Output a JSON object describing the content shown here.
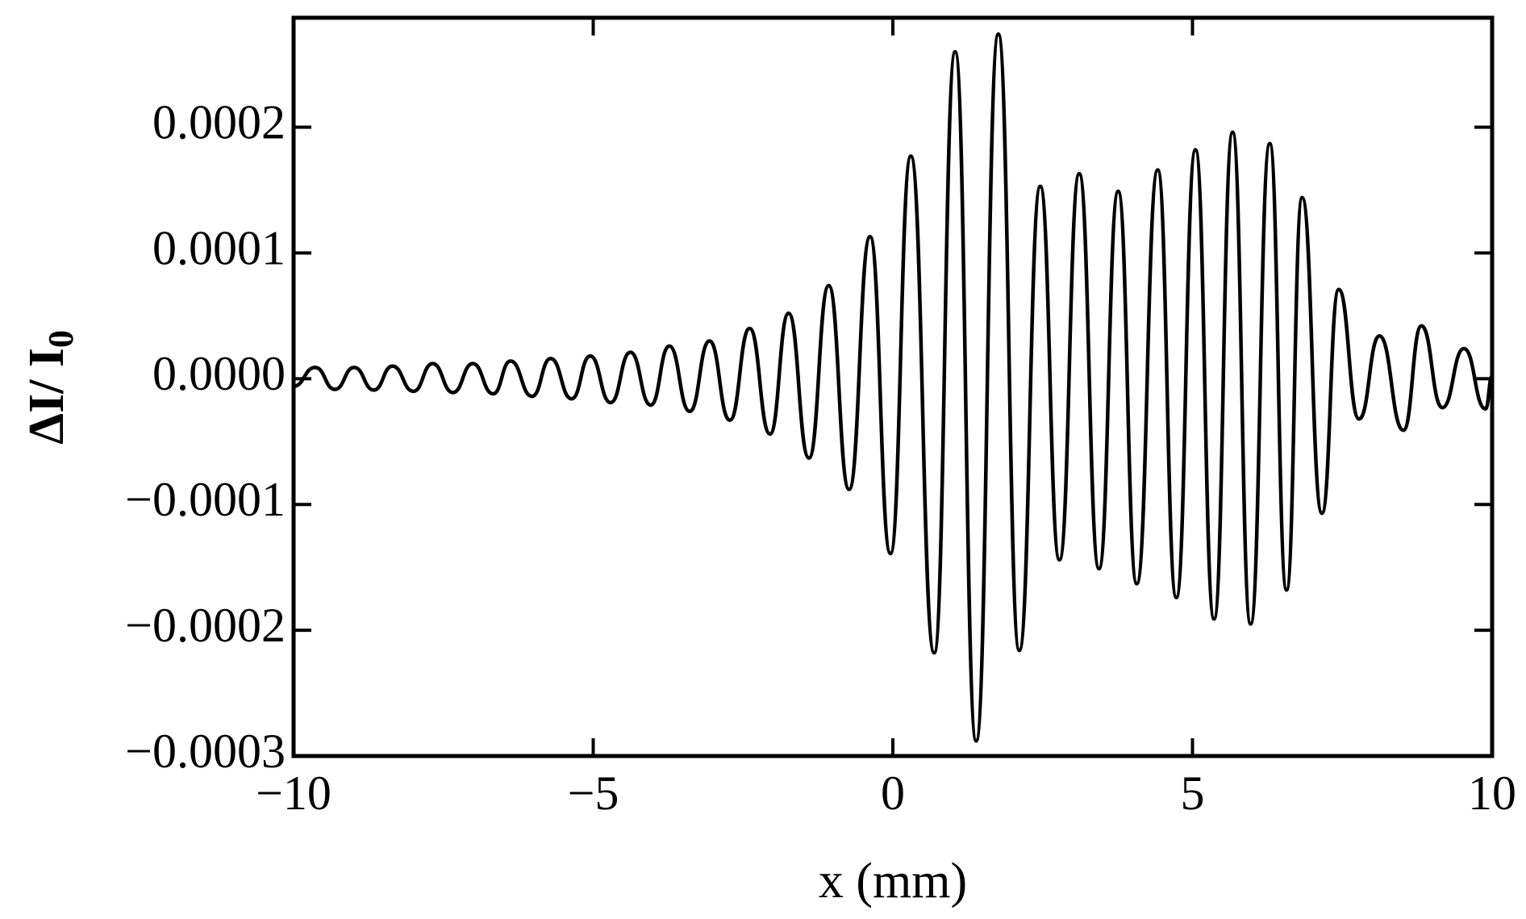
{
  "chart_data": {
    "type": "line",
    "x_label": "x (mm)",
    "y_label": {
      "main": "ΔI/ I",
      "sub": "0"
    },
    "x": [
      -10,
      -9.64,
      -9.31,
      -8.99,
      -8.66,
      -8.35,
      -8.0,
      -7.68,
      -7.34,
      -7.01,
      -6.67,
      -6.38,
      -6.02,
      -5.71,
      -5.36,
      -5.05,
      -4.71,
      -4.38,
      -4.04,
      -3.73,
      -3.39,
      -3.06,
      -2.72,
      -2.39,
      -2.05,
      -1.74,
      -1.4,
      -1.07,
      -0.73,
      -0.38,
      -0.04,
      0.3,
      0.69,
      1.04,
      1.39,
      1.76,
      2.11,
      2.46,
      2.78,
      3.11,
      3.44,
      3.76,
      4.07,
      4.42,
      4.73,
      5.05,
      5.36,
      5.67,
      5.97,
      6.29,
      6.57,
      6.83,
      7.16,
      7.44,
      7.78,
      8.12,
      8.52,
      8.82,
      9.17,
      9.53,
      9.89,
      10
    ],
    "series": [
      {
        "color": "#000000",
        "values": [
          -6e-06,
          9e-06,
          -8.5e-06,
          9e-06,
          -9e-06,
          1e-05,
          -1e-05,
          1.2e-05,
          -1.1e-05,
          1.2e-05,
          -1.2e-05,
          1.4e-05,
          -1.4e-05,
          1.6e-05,
          -1.6e-05,
          1.8e-05,
          -1.9e-05,
          2.1e-05,
          -2.1e-05,
          2.6e-05,
          -2.6e-05,
          3e-05,
          -3.3e-05,
          4e-05,
          -4.4e-05,
          5.2e-05,
          -6.3e-05,
          7.4e-05,
          -8.8e-05,
          0.000113,
          -0.000139,
          0.000177,
          -0.000218,
          0.00026,
          -0.000288,
          0.000274,
          -0.000216,
          0.000153,
          -0.000144,
          0.000163,
          -0.000151,
          0.000149,
          -0.000163,
          0.000166,
          -0.000174,
          0.000182,
          -0.000191,
          0.000196,
          -0.000195,
          0.000187,
          -0.000168,
          0.000144,
          -0.000107,
          7.1e-05,
          -3.2e-05,
          3.4e-05,
          -4.1e-05,
          4.2e-05,
          -2.3e-05,
          2.4e-05,
          -2.4e-05,
          2e-06
        ]
      }
    ],
    "xlim": [
      -10,
      10
    ],
    "ylim": [
      -0.0003,
      0.000287
    ],
    "xticks": [
      {
        "value": -10,
        "label": "−10"
      },
      {
        "value": -5,
        "label": "−5"
      },
      0,
      5,
      10
    ],
    "yticks": [
      {
        "value": -0.0003,
        "label": "−0.0003"
      },
      {
        "value": -0.0002,
        "label": "−0.0002"
      },
      {
        "value": -0.0001,
        "label": "−0.0001"
      },
      {
        "value": 0,
        "label": "0.0000"
      },
      0.0001,
      0.0002
    ],
    "grid": false
  }
}
